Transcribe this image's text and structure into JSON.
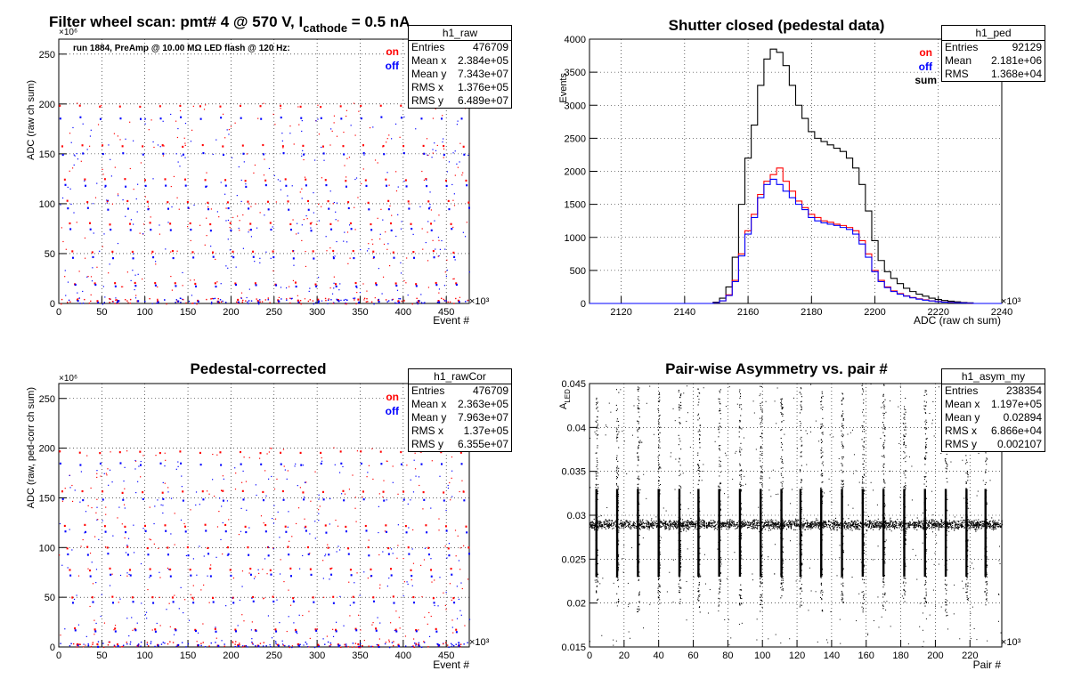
{
  "colors": {
    "on": "#ff0000",
    "off": "#0000ff",
    "sum": "#000000",
    "grid": "#000000"
  },
  "panels": [
    {
      "id": "raw",
      "title": "Filter wheel scan: pmt#   4 @   570 V, I",
      "title_sub": "cathode",
      "title_tail": " = 0.5 nA",
      "run_label": "run 1884, PreAmp @ 10.00 MΩ LED flash @  120 Hz:",
      "ylabel": "ADC (raw ch sum)",
      "xlabel": "Event #",
      "yexp": "×10⁶",
      "xexp": "×10³",
      "legend": [
        {
          "label": "on",
          "color": "#ff0000"
        },
        {
          "label": "off",
          "color": "#0000ff"
        }
      ],
      "stats": {
        "title": "h1_raw",
        "rows": [
          [
            "Entries",
            "476709"
          ],
          [
            "Mean x",
            "2.384e+05"
          ],
          [
            "Mean y",
            "7.343e+07"
          ],
          [
            "RMS x",
            "1.376e+05"
          ],
          [
            "RMS y",
            "6.489e+07"
          ]
        ]
      }
    },
    {
      "id": "ped",
      "title": "Shutter closed (pedestal data)",
      "ylabel": "Events",
      "xlabel": "ADC (raw ch sum)",
      "xexp": "×10³",
      "legend": [
        {
          "label": "on",
          "color": "#ff0000"
        },
        {
          "label": "off",
          "color": "#0000ff"
        },
        {
          "label": "sum",
          "color": "#000000"
        }
      ],
      "stats": {
        "title": "h1_ped",
        "rows": [
          [
            "Entries",
            "92129"
          ],
          [
            "Mean",
            "2.181e+06"
          ],
          [
            "RMS",
            "1.368e+04"
          ]
        ]
      }
    },
    {
      "id": "cor",
      "title": "Pedestal-corrected",
      "ylabel": "ADC (raw, ped-corr ch sum)",
      "xlabel": "Event #",
      "yexp": "×10⁶",
      "xexp": "×10³",
      "legend": [
        {
          "label": "on",
          "color": "#ff0000"
        },
        {
          "label": "off",
          "color": "#0000ff"
        }
      ],
      "stats": {
        "title": "h1_rawCor",
        "rows": [
          [
            "Entries",
            "476709"
          ],
          [
            "Mean x",
            "2.363e+05"
          ],
          [
            "Mean y",
            "7.963e+07"
          ],
          [
            "RMS x",
            "1.37e+05"
          ],
          [
            "RMS y",
            "6.355e+07"
          ]
        ]
      }
    },
    {
      "id": "asym",
      "title": "Pair-wise Asymmetry vs. pair #",
      "ylabel": "A",
      "ylabel_sub": "LED",
      "xlabel": "Pair #",
      "xexp": "×10³",
      "stats": {
        "title": "h1_asym_my",
        "rows": [
          [
            "Entries",
            "238354"
          ],
          [
            "Mean x",
            "1.197e+05"
          ],
          [
            "Mean y",
            "0.02894"
          ],
          [
            "RMS x",
            "6.866e+04"
          ],
          [
            "RMS y",
            "0.002107"
          ]
        ]
      }
    }
  ],
  "chart_data": [
    {
      "type": "scatter",
      "title": "Filter wheel scan: pmt#   4 @   570 V, I cathode = 0.5 nA",
      "xlabel": "Event #",
      "ylabel": "ADC (raw ch sum)",
      "xlim": [
        0,
        476.7
      ],
      "ylim": [
        0,
        265
      ],
      "x_ticks": [
        0,
        50,
        100,
        150,
        200,
        250,
        300,
        350,
        400,
        450
      ],
      "y_ticks": [
        0,
        50,
        100,
        150,
        200,
        250
      ],
      "grid": true,
      "step_period": 23.3,
      "series": [
        {
          "name": "on",
          "levels": [
            198,
            158,
            124,
            102,
            80,
            52,
            20,
            3
          ]
        },
        {
          "name": "off",
          "levels": [
            186,
            150,
            118,
            95,
            74,
            46,
            18,
            2
          ]
        }
      ]
    },
    {
      "type": "line",
      "title": "Shutter closed (pedestal data)",
      "xlabel": "ADC (raw ch sum)",
      "ylabel": "Events",
      "xlim": [
        2110,
        2240
      ],
      "ylim": [
        0,
        4000
      ],
      "x_ticks": [
        2120,
        2140,
        2160,
        2180,
        2200,
        2220,
        2240
      ],
      "y_ticks": [
        0,
        500,
        1000,
        1500,
        2000,
        2500,
        3000,
        3500,
        4000
      ],
      "grid": true,
      "x": [
        2150,
        2152,
        2154,
        2156,
        2158,
        2160,
        2162,
        2164,
        2166,
        2168,
        2170,
        2172,
        2174,
        2176,
        2178,
        2180,
        2182,
        2184,
        2186,
        2188,
        2190,
        2192,
        2194,
        2196,
        2198,
        2200,
        2202,
        2204,
        2206,
        2208,
        2210,
        2212,
        2214,
        2216,
        2218,
        2220,
        2222,
        2224,
        2226,
        2228,
        2230
      ],
      "series": [
        {
          "name": "sum",
          "values": [
            20,
            80,
            250,
            700,
            1500,
            2200,
            2700,
            3300,
            3700,
            3850,
            3800,
            3600,
            3300,
            3000,
            2800,
            2600,
            2500,
            2450,
            2400,
            2350,
            2300,
            2200,
            2050,
            1800,
            1400,
            950,
            650,
            480,
            380,
            300,
            230,
            180,
            140,
            110,
            80,
            60,
            45,
            35,
            25,
            15,
            10
          ]
        },
        {
          "name": "on",
          "values": [
            10,
            40,
            130,
            350,
            750,
            1100,
            1350,
            1650,
            1850,
            1950,
            2050,
            1850,
            1700,
            1550,
            1450,
            1350,
            1300,
            1250,
            1230,
            1200,
            1180,
            1150,
            1100,
            950,
            750,
            500,
            350,
            250,
            190,
            150,
            115,
            90,
            70,
            55,
            40,
            30,
            22,
            17,
            12,
            8,
            5
          ]
        },
        {
          "name": "off",
          "values": [
            10,
            40,
            120,
            330,
            720,
            1050,
            1300,
            1600,
            1800,
            1880,
            1800,
            1700,
            1600,
            1500,
            1420,
            1300,
            1250,
            1220,
            1200,
            1180,
            1150,
            1120,
            1050,
            900,
            700,
            480,
            330,
            240,
            180,
            140,
            110,
            85,
            65,
            50,
            38,
            28,
            20,
            15,
            11,
            7,
            5
          ]
        }
      ]
    },
    {
      "type": "scatter",
      "title": "Pedestal-corrected",
      "xlabel": "Event #",
      "ylabel": "ADC (raw, ped-corr ch sum)",
      "xlim": [
        0,
        476.7
      ],
      "ylim": [
        0,
        265
      ],
      "x_ticks": [
        0,
        50,
        100,
        150,
        200,
        250,
        300,
        350,
        400,
        450
      ],
      "y_ticks": [
        0,
        50,
        100,
        150,
        200,
        250
      ],
      "grid": true,
      "step_period": 23.3,
      "series": [
        {
          "name": "on",
          "levels": [
            196,
            156,
            122,
            100,
            78,
            50,
            18,
            2
          ]
        },
        {
          "name": "off",
          "levels": [
            184,
            148,
            116,
            93,
            72,
            45,
            16,
            1
          ]
        }
      ]
    },
    {
      "type": "scatter",
      "title": "Pair-wise Asymmetry vs. pair #",
      "xlabel": "Pair #",
      "ylabel": "A LED",
      "xlim": [
        0,
        238.4
      ],
      "ylim": [
        0.015,
        0.045
      ],
      "x_ticks": [
        0,
        20,
        40,
        60,
        80,
        100,
        120,
        140,
        160,
        180,
        200,
        220
      ],
      "y_ticks": [
        0.015,
        0.02,
        0.025,
        0.03,
        0.035,
        0.04,
        0.045
      ],
      "grid": true,
      "band_center": 0.029,
      "spike_x": [
        4,
        16,
        28,
        40,
        52,
        63,
        75,
        87,
        99,
        111,
        122,
        134,
        146,
        158,
        170,
        182,
        194,
        206,
        218,
        229
      ]
    }
  ]
}
